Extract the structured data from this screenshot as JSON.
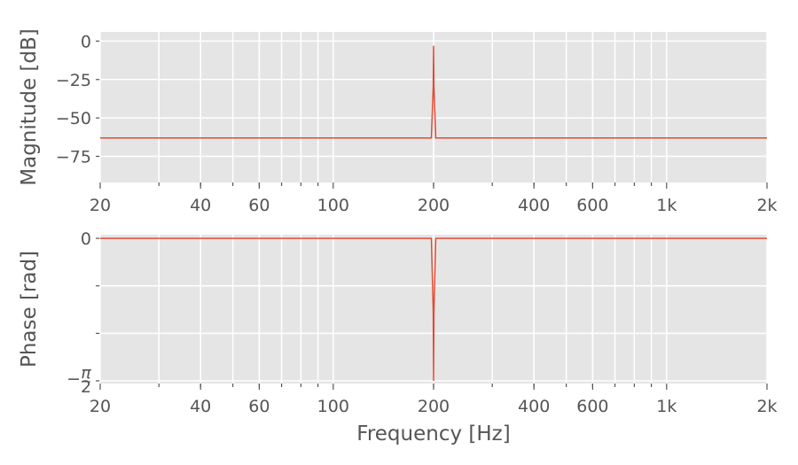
{
  "chart_data": [
    {
      "type": "line",
      "title": "",
      "xlabel": "",
      "ylabel": "Magnitude [dB]",
      "xscale": "log",
      "xlim": [
        20,
        2000
      ],
      "ylim": [
        -92,
        6
      ],
      "x_ticks": [
        {
          "value": 20,
          "label": "20"
        },
        {
          "value": 40,
          "label": "40"
        },
        {
          "value": 60,
          "label": "60"
        },
        {
          "value": 100,
          "label": "100"
        },
        {
          "value": 200,
          "label": "200"
        },
        {
          "value": 400,
          "label": "400"
        },
        {
          "value": 600,
          "label": "600"
        },
        {
          "value": 1000,
          "label": "1k"
        },
        {
          "value": 2000,
          "label": "2k"
        }
      ],
      "y_ticks": [
        {
          "value": 0,
          "label": "0"
        },
        {
          "value": -25,
          "label": "−25"
        },
        {
          "value": -50,
          "label": "−50"
        },
        {
          "value": -75,
          "label": "−75"
        }
      ],
      "grid": true,
      "series": [
        {
          "color": "#e24a33",
          "x": [
            20,
            197,
            199.5,
            200,
            200.5,
            203,
            2000
          ],
          "y": [
            -63,
            -63,
            -30,
            -3,
            -30,
            -63,
            -63
          ]
        }
      ]
    },
    {
      "type": "line",
      "title": "",
      "xlabel": "Frequency [Hz]",
      "ylabel": "Phase [rad]",
      "xscale": "log",
      "xlim": [
        20,
        2000
      ],
      "ylim": [
        -1.6,
        0.04
      ],
      "x_ticks": [
        {
          "value": 20,
          "label": "20"
        },
        {
          "value": 40,
          "label": "40"
        },
        {
          "value": 60,
          "label": "60"
        },
        {
          "value": 100,
          "label": "100"
        },
        {
          "value": 200,
          "label": "200"
        },
        {
          "value": 400,
          "label": "400"
        },
        {
          "value": 600,
          "label": "600"
        },
        {
          "value": 1000,
          "label": "1k"
        },
        {
          "value": 2000,
          "label": "2k"
        }
      ],
      "y_ticks": [
        {
          "value": 0,
          "label": "0"
        },
        {
          "value": -0.5236,
          "label": ""
        },
        {
          "value": -1.0472,
          "label": ""
        },
        {
          "value": -1.5708,
          "label": "−π/2"
        }
      ],
      "grid": true,
      "series": [
        {
          "color": "#e24a33",
          "x": [
            20,
            197,
            199.5,
            200,
            200.5,
            203,
            2000
          ],
          "y": [
            0,
            0,
            -0.8,
            -1.5708,
            -0.8,
            0,
            0
          ]
        }
      ]
    }
  ]
}
